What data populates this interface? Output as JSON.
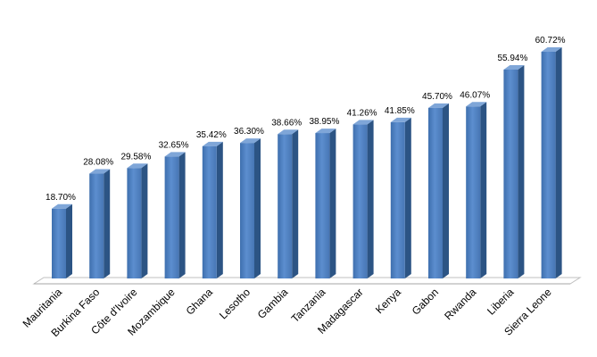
{
  "chart_data": {
    "type": "bar",
    "categories": [
      "Mauritania",
      "Burkina Faso",
      "Côte d'Ivoire",
      "Mozambique",
      "Ghana",
      "Lesotho",
      "Gambia",
      "Tanzania",
      "Madagascar",
      "Kenya",
      "Gabon",
      "Rwanda",
      "Liberia",
      "Sierra Leone"
    ],
    "values": [
      18.7,
      28.08,
      29.58,
      32.65,
      35.42,
      36.3,
      38.66,
      38.95,
      41.26,
      41.85,
      45.7,
      46.07,
      55.94,
      60.72
    ],
    "data_labels": [
      "18.70%",
      "28.08%",
      "29.58%",
      "32.65%",
      "35.42%",
      "36.30%",
      "38.66%",
      "38.95%",
      "41.26%",
      "41.85%",
      "45.70%",
      "46.07%",
      "55.94%",
      "60.72%"
    ],
    "title": "",
    "xlabel": "",
    "ylabel": "",
    "ylim": [
      0,
      62
    ],
    "grid": false,
    "legend": "none",
    "bar_style": "3d",
    "colors": {
      "bar_front": "#4F81BD",
      "bar_side": "#2C5484",
      "bar_top": "#7FA6D8",
      "floor": "#D9D9D9"
    }
  }
}
